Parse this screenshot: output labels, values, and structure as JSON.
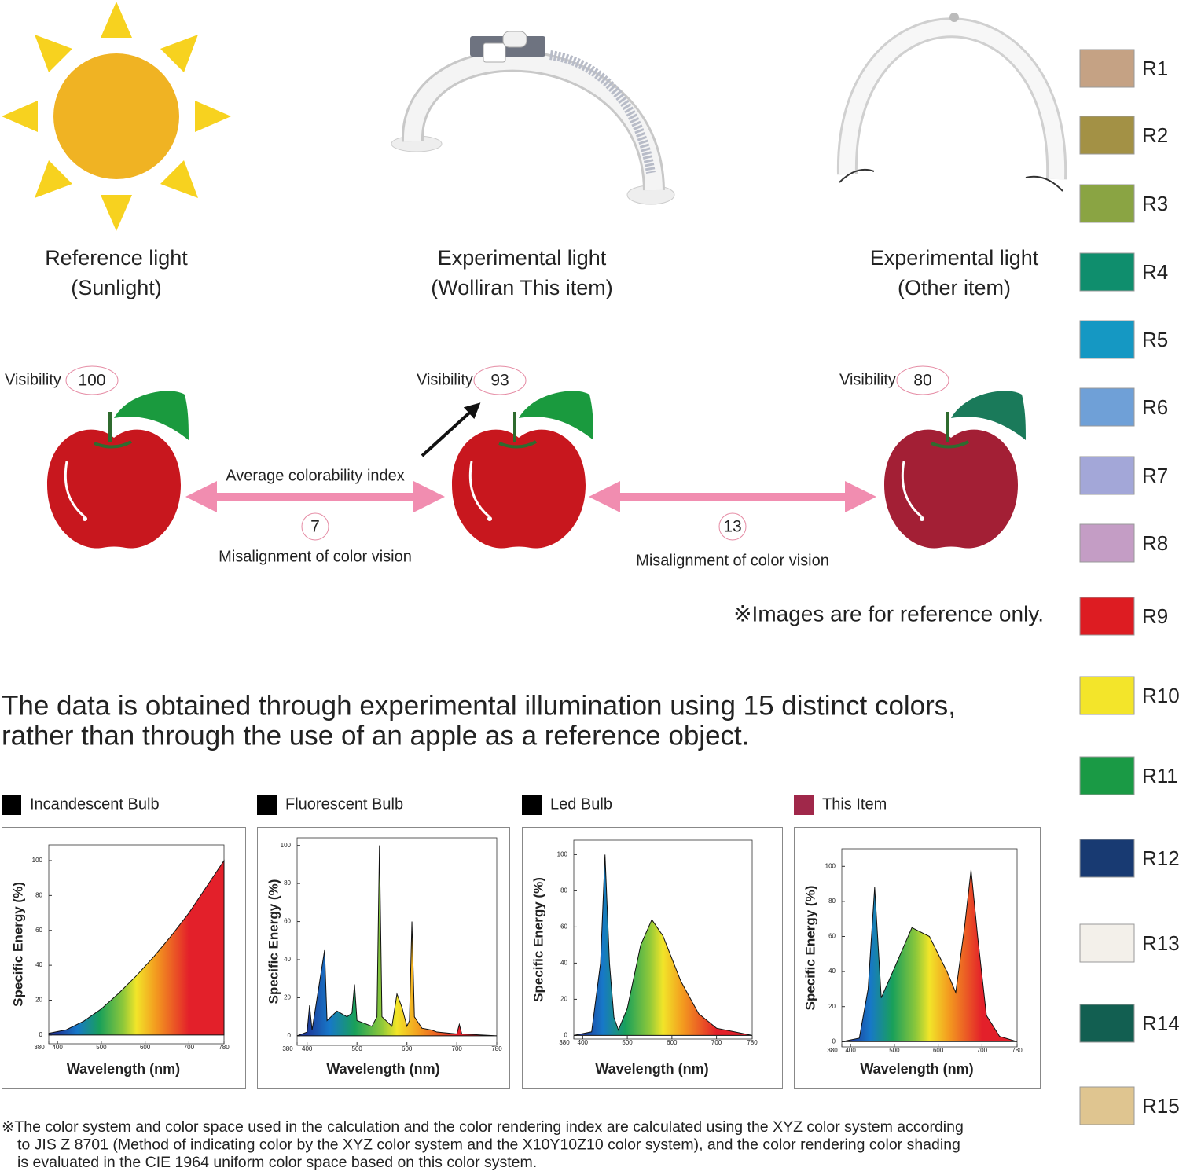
{
  "sources": [
    {
      "label": [
        "Reference light",
        "(Sunlight)"
      ],
      "visibility_label": "Visibility",
      "visibility": 100
    },
    {
      "label": [
        "Experimental light",
        "(Wolliran This item)"
      ],
      "visibility_label": "Visibility",
      "visibility": 93
    },
    {
      "label": [
        "Experimental light",
        "(Other item)"
      ],
      "visibility_label": "Visibility",
      "visibility": 80
    }
  ],
  "comparisons": [
    {
      "title": "Average colorability index",
      "value": 7,
      "caption": "Misalignment of color vision"
    },
    {
      "value": 13,
      "caption": "Misalignment of color vision"
    }
  ],
  "note": "※Images are for reference only.",
  "headline": [
    "The data is obtained through experimental illumination using 15 distinct colors,",
    "rather than through the use of an apple as a reference object."
  ],
  "swatches": [
    {
      "label": "R1",
      "color": "#c5a284"
    },
    {
      "label": "R2",
      "color": "#a39145"
    },
    {
      "label": "R3",
      "color": "#8aa443"
    },
    {
      "label": "R4",
      "color": "#0f8e6d"
    },
    {
      "label": "R5",
      "color": "#1598c3"
    },
    {
      "label": "R6",
      "color": "#6fa0d7"
    },
    {
      "label": "R7",
      "color": "#a3a7d8"
    },
    {
      "label": "R8",
      "color": "#c49dc5"
    },
    {
      "label": "R9",
      "color": "#dd1c22"
    },
    {
      "label": "R10",
      "color": "#f3e52a"
    },
    {
      "label": "R11",
      "color": "#1a9a45"
    },
    {
      "label": "R12",
      "color": "#183a72"
    },
    {
      "label": "R13",
      "color": "#f3f0ea"
    },
    {
      "label": "R14",
      "color": "#125f51"
    },
    {
      "label": "R15",
      "color": "#dfc590"
    }
  ],
  "charts": [
    {
      "type": "area",
      "title": "Incandescent Bulb",
      "color": "#000000",
      "y_label": "Specific Energy (%)",
      "x_label": "Wavelength (nm)",
      "x": [
        380,
        420,
        460,
        500,
        540,
        580,
        620,
        660,
        700,
        740,
        780
      ],
      "values": [
        1,
        3,
        8,
        15,
        24,
        34,
        45,
        57,
        70,
        85,
        100
      ],
      "xlim": [
        380,
        780
      ],
      "xticks": [
        380,
        400,
        500,
        600,
        700,
        780
      ],
      "ylim": [
        -5,
        109
      ],
      "yticks": [
        0,
        20,
        40,
        60,
        80,
        100
      ]
    },
    {
      "type": "area",
      "title": "Fluorescent Bulb",
      "color": "#000000",
      "y_label": "Specific Energy (%)",
      "x_label": "Wavelength (nm)",
      "x": [
        380,
        400,
        405,
        410,
        435,
        440,
        460,
        480,
        490,
        495,
        500,
        530,
        540,
        545,
        550,
        570,
        580,
        590,
        600,
        605,
        610,
        615,
        630,
        650,
        660,
        700,
        705,
        710,
        780
      ],
      "values": [
        0,
        2,
        16,
        3,
        45,
        8,
        13,
        10,
        12,
        27,
        8,
        5,
        10,
        100,
        10,
        5,
        22,
        15,
        5,
        8,
        60,
        10,
        4,
        3,
        2,
        1,
        6,
        1,
        0
      ],
      "xlim": [
        380,
        780
      ],
      "xticks": [
        380,
        400,
        500,
        600,
        700,
        780
      ],
      "ylim": [
        -5,
        104
      ],
      "yticks": [
        0,
        20,
        40,
        60,
        80,
        100
      ]
    },
    {
      "type": "area",
      "title": "Led Bulb",
      "color": "#000000",
      "y_label": "Specific Energy (%)",
      "x_label": "Wavelength (nm)",
      "x": [
        380,
        420,
        440,
        450,
        460,
        470,
        480,
        500,
        530,
        555,
        580,
        620,
        660,
        700,
        740,
        780
      ],
      "values": [
        0,
        2,
        40,
        100,
        40,
        10,
        3,
        15,
        50,
        64,
        55,
        30,
        12,
        4,
        2,
        0
      ],
      "xlim": [
        380,
        780
      ],
      "xticks": [
        380,
        400,
        500,
        600,
        700,
        780
      ],
      "ylim": [
        -2,
        108
      ],
      "yticks": [
        0,
        20,
        40,
        60,
        80,
        100
      ]
    },
    {
      "type": "area",
      "title": "This Item",
      "color": "#a0284a",
      "y_label": "Specific Energy (%)",
      "x_label": "Wavelength (nm)",
      "x": [
        380,
        420,
        440,
        455,
        470,
        500,
        540,
        580,
        620,
        640,
        660,
        675,
        690,
        710,
        740,
        780
      ],
      "values": [
        0,
        2,
        30,
        88,
        25,
        42,
        65,
        60,
        40,
        28,
        65,
        98,
        60,
        15,
        3,
        0
      ],
      "xlim": [
        380,
        780
      ],
      "xticks": [
        380,
        400,
        500,
        600,
        700,
        780
      ],
      "ylim": [
        -3,
        110
      ],
      "yticks": [
        0,
        20,
        40,
        60,
        80,
        100
      ]
    }
  ],
  "footnote": [
    "※The color system and color space used in the calculation and the color rendering index are calculated using the XYZ color system according",
    "to JIS Z 8701 (Method of indicating color by the XYZ color system and the X10Y10Z10 color system), and the color rendering color shading",
    "is evaluated in the CIE 1964 uniform color space based on this color system."
  ]
}
